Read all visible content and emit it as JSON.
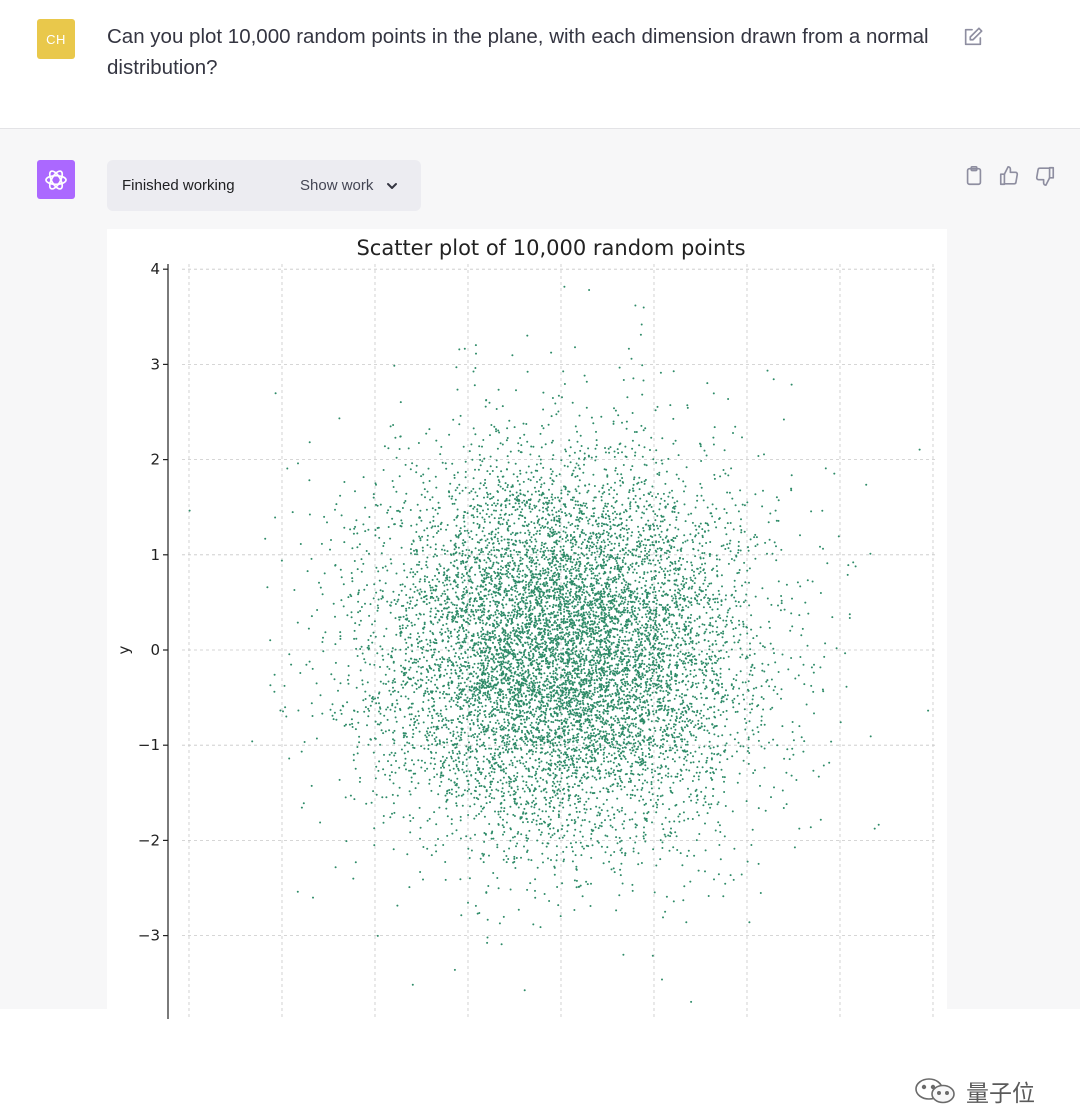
{
  "user": {
    "avatar_initials": "CH",
    "message": "Can you plot 10,000 random points in the plane, with each dimension drawn from a normal distribution?",
    "icons": {
      "edit": "edit-icon"
    }
  },
  "assistant": {
    "work_status": "Finished working",
    "show_work_label": "Show work",
    "icons": {
      "avatar": "openai-logo-icon",
      "copy": "clipboard-icon",
      "like": "thumbs-up-icon",
      "dislike": "thumbs-down-icon",
      "chevron": "chevron-down-icon"
    }
  },
  "watermark": {
    "text": "量子位",
    "icon": "wechat-icon"
  },
  "colors": {
    "user_avatar": "#e9c84b",
    "assistant_avatar": "#ab68ff",
    "marker": "#2e8b68",
    "panel_bg": "#f7f7f8",
    "work_box_bg": "#ececf1"
  },
  "chart_data": {
    "type": "scatter",
    "title": "Scatter plot of 10,000 random points",
    "xlabel": "",
    "ylabel": "y",
    "n_points": 10000,
    "distribution": {
      "x": {
        "mean": 0,
        "std": 1
      },
      "y": {
        "mean": 0,
        "std": 1
      }
    },
    "ylim": [
      -3.8,
      4.1
    ],
    "xlim": [
      -4.2,
      4.0
    ],
    "yticks": [
      4,
      3,
      2,
      1,
      0,
      -1,
      -2,
      -3
    ],
    "ytick_labels": [
      "4",
      "3",
      "2",
      "1",
      "0",
      "−1",
      "−2",
      "−3"
    ],
    "grid": true,
    "marker_size": 1.5
  }
}
